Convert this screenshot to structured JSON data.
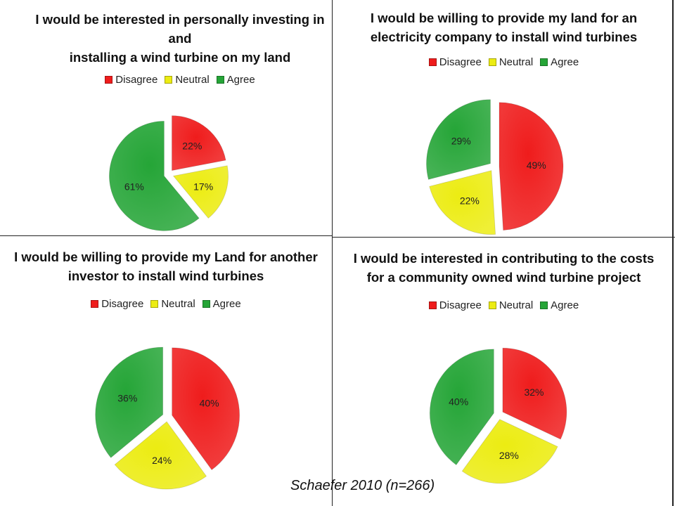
{
  "source": "Schaefer 2010 (n=266)",
  "colors": {
    "Disagree": "#ef1c1c",
    "Neutral": "#ecec12",
    "Agree": "#25a537"
  },
  "chart_data": [
    {
      "type": "pie",
      "title": "I would be interested in personally investing in and\ninstalling a wind turbine on my land",
      "categories": [
        "Disagree",
        "Neutral",
        "Agree"
      ],
      "values": [
        22,
        17,
        61
      ],
      "labels": [
        "22%",
        "17%",
        "61%"
      ],
      "legend": "top"
    },
    {
      "type": "pie",
      "title": "I would be willing to provide my land for an\nelectricity company to install wind turbines",
      "categories": [
        "Disagree",
        "Neutral",
        "Agree"
      ],
      "values": [
        49,
        22,
        29
      ],
      "labels": [
        "49%",
        "22%",
        "29%"
      ],
      "legend": "top"
    },
    {
      "type": "pie",
      "title": "I would be willing to provide my Land for another\ninvestor to install wind turbines",
      "categories": [
        "Disagree",
        "Neutral",
        "Agree"
      ],
      "values": [
        40,
        24,
        36
      ],
      "labels": [
        "40%",
        "24%",
        "36%"
      ],
      "legend": "top"
    },
    {
      "type": "pie",
      "title": "I would be interested in contributing to the costs\nfor a community owned wind turbine project",
      "categories": [
        "Disagree",
        "Neutral",
        "Agree"
      ],
      "values": [
        32,
        28,
        40
      ],
      "labels": [
        "32%",
        "28%",
        "40%"
      ],
      "legend": "top"
    }
  ]
}
